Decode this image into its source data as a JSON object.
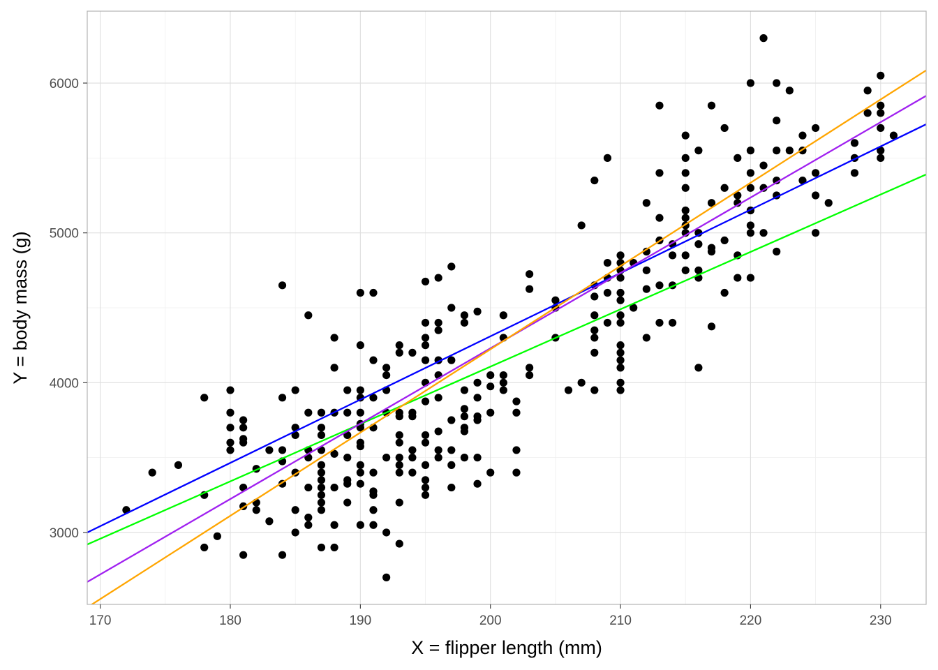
{
  "chart_data": {
    "type": "scatter",
    "title": "",
    "xlabel": "X = flipper length (mm)",
    "ylabel": "Y = body mass (g)",
    "xlim": [
      169,
      233.5
    ],
    "ylim": [
      2520,
      6480
    ],
    "grid": true,
    "x_ticks": [
      170,
      180,
      190,
      200,
      210,
      220,
      230
    ],
    "y_ticks": [
      3000,
      4000,
      5000,
      6000
    ],
    "points": [
      [
        172,
        3150
      ],
      [
        174,
        3400
      ],
      [
        176,
        3450
      ],
      [
        178,
        3900
      ],
      [
        178,
        3250
      ],
      [
        178,
        2900
      ],
      [
        179,
        2975
      ],
      [
        180,
        3950
      ],
      [
        180,
        3800
      ],
      [
        180,
        3700
      ],
      [
        180,
        3600
      ],
      [
        180,
        3550
      ],
      [
        181,
        3750
      ],
      [
        181,
        3700
      ],
      [
        181,
        3625
      ],
      [
        181,
        3600
      ],
      [
        181,
        3300
      ],
      [
        181,
        3175
      ],
      [
        181,
        2850
      ],
      [
        182,
        3425
      ],
      [
        182,
        3200
      ],
      [
        182,
        3150
      ],
      [
        183,
        3550
      ],
      [
        183,
        3075
      ],
      [
        184,
        4650
      ],
      [
        184,
        3900
      ],
      [
        184,
        3550
      ],
      [
        184,
        3475
      ],
      [
        184,
        3325
      ],
      [
        184,
        2850
      ],
      [
        185,
        3950
      ],
      [
        185,
        3700
      ],
      [
        185,
        3650
      ],
      [
        185,
        3400
      ],
      [
        185,
        3150
      ],
      [
        185,
        3000
      ],
      [
        186,
        4450
      ],
      [
        186,
        3800
      ],
      [
        186,
        3550
      ],
      [
        186,
        3500
      ],
      [
        186,
        3300
      ],
      [
        186,
        3100
      ],
      [
        186,
        3050
      ],
      [
        187,
        3800
      ],
      [
        187,
        3700
      ],
      [
        187,
        3650
      ],
      [
        187,
        3550
      ],
      [
        187,
        3450
      ],
      [
        187,
        3400
      ],
      [
        187,
        3350
      ],
      [
        187,
        3300
      ],
      [
        187,
        3250
      ],
      [
        187,
        3200
      ],
      [
        187,
        3150
      ],
      [
        187,
        2900
      ],
      [
        188,
        4300
      ],
      [
        188,
        4100
      ],
      [
        188,
        3800
      ],
      [
        188,
        3525
      ],
      [
        188,
        3300
      ],
      [
        188,
        3050
      ],
      [
        188,
        2900
      ],
      [
        189,
        3950
      ],
      [
        189,
        3800
      ],
      [
        189,
        3650
      ],
      [
        189,
        3500
      ],
      [
        189,
        3350
      ],
      [
        189,
        3325
      ],
      [
        189,
        3200
      ],
      [
        190,
        4600
      ],
      [
        190,
        4250
      ],
      [
        190,
        3950
      ],
      [
        190,
        3900
      ],
      [
        190,
        3800
      ],
      [
        190,
        3725
      ],
      [
        190,
        3700
      ],
      [
        190,
        3600
      ],
      [
        190,
        3575
      ],
      [
        190,
        3450
      ],
      [
        190,
        3400
      ],
      [
        190,
        3325
      ],
      [
        190,
        3050
      ],
      [
        191,
        4600
      ],
      [
        191,
        4150
      ],
      [
        191,
        3900
      ],
      [
        191,
        3700
      ],
      [
        191,
        3400
      ],
      [
        191,
        3275
      ],
      [
        191,
        3250
      ],
      [
        191,
        3150
      ],
      [
        191,
        3050
      ],
      [
        192,
        4100
      ],
      [
        192,
        4050
      ],
      [
        192,
        3950
      ],
      [
        192,
        3800
      ],
      [
        192,
        3500
      ],
      [
        192,
        3000
      ],
      [
        192,
        2700
      ],
      [
        193,
        4250
      ],
      [
        193,
        4200
      ],
      [
        193,
        3800
      ],
      [
        193,
        3775
      ],
      [
        193,
        3650
      ],
      [
        193,
        3600
      ],
      [
        193,
        3500
      ],
      [
        193,
        3450
      ],
      [
        193,
        3400
      ],
      [
        193,
        3200
      ],
      [
        193,
        2925
      ],
      [
        194,
        4200
      ],
      [
        194,
        3800
      ],
      [
        194,
        3775
      ],
      [
        194,
        3550
      ],
      [
        194,
        3500
      ],
      [
        194,
        3400
      ],
      [
        195,
        4675
      ],
      [
        195,
        4400
      ],
      [
        195,
        4300
      ],
      [
        195,
        4250
      ],
      [
        195,
        4150
      ],
      [
        195,
        4000
      ],
      [
        195,
        3875
      ],
      [
        195,
        3650
      ],
      [
        195,
        3600
      ],
      [
        195,
        3450
      ],
      [
        195,
        3350
      ],
      [
        195,
        3300
      ],
      [
        195,
        3250
      ],
      [
        196,
        4700
      ],
      [
        196,
        4400
      ],
      [
        196,
        4350
      ],
      [
        196,
        4150
      ],
      [
        196,
        4050
      ],
      [
        196,
        3900
      ],
      [
        196,
        3675
      ],
      [
        196,
        3550
      ],
      [
        196,
        3500
      ],
      [
        197,
        4775
      ],
      [
        197,
        4500
      ],
      [
        197,
        4150
      ],
      [
        197,
        3750
      ],
      [
        197,
        3550
      ],
      [
        197,
        3450
      ],
      [
        197,
        3300
      ],
      [
        198,
        4450
      ],
      [
        198,
        4400
      ],
      [
        198,
        3950
      ],
      [
        198,
        3825
      ],
      [
        198,
        3775
      ],
      [
        198,
        3700
      ],
      [
        198,
        3675
      ],
      [
        198,
        3500
      ],
      [
        199,
        4475
      ],
      [
        199,
        4000
      ],
      [
        199,
        3900
      ],
      [
        199,
        3775
      ],
      [
        199,
        3750
      ],
      [
        199,
        3500
      ],
      [
        199,
        3325
      ],
      [
        200,
        4050
      ],
      [
        200,
        3975
      ],
      [
        200,
        3800
      ],
      [
        200,
        3400
      ],
      [
        201,
        4450
      ],
      [
        201,
        4300
      ],
      [
        201,
        4050
      ],
      [
        201,
        4000
      ],
      [
        201,
        3950
      ],
      [
        202,
        3875
      ],
      [
        202,
        3800
      ],
      [
        202,
        3550
      ],
      [
        202,
        3400
      ],
      [
        203,
        4725
      ],
      [
        203,
        4625
      ],
      [
        203,
        4100
      ],
      [
        203,
        4050
      ],
      [
        205,
        4550
      ],
      [
        205,
        4500
      ],
      [
        205,
        4300
      ],
      [
        206,
        3950
      ],
      [
        207,
        5050
      ],
      [
        207,
        4000
      ],
      [
        208,
        5350
      ],
      [
        208,
        4650
      ],
      [
        208,
        4575
      ],
      [
        208,
        4450
      ],
      [
        208,
        4350
      ],
      [
        208,
        4300
      ],
      [
        208,
        4200
      ],
      [
        208,
        3950
      ],
      [
        209,
        5500
      ],
      [
        209,
        4800
      ],
      [
        209,
        4700
      ],
      [
        209,
        4600
      ],
      [
        209,
        4400
      ],
      [
        210,
        4850
      ],
      [
        210,
        4800
      ],
      [
        210,
        4750
      ],
      [
        210,
        4700
      ],
      [
        210,
        4600
      ],
      [
        210,
        4550
      ],
      [
        210,
        4450
      ],
      [
        210,
        4400
      ],
      [
        210,
        4250
      ],
      [
        210,
        4200
      ],
      [
        210,
        4150
      ],
      [
        210,
        4100
      ],
      [
        210,
        4000
      ],
      [
        210,
        3950
      ],
      [
        211,
        4800
      ],
      [
        211,
        4500
      ],
      [
        212,
        5200
      ],
      [
        212,
        4875
      ],
      [
        212,
        4750
      ],
      [
        212,
        4625
      ],
      [
        212,
        4300
      ],
      [
        213,
        5850
      ],
      [
        213,
        5400
      ],
      [
        213,
        5100
      ],
      [
        213,
        4950
      ],
      [
        213,
        4650
      ],
      [
        213,
        4400
      ],
      [
        214,
        4925
      ],
      [
        214,
        4850
      ],
      [
        214,
        4650
      ],
      [
        214,
        4400
      ],
      [
        215,
        5650
      ],
      [
        215,
        5500
      ],
      [
        215,
        5400
      ],
      [
        215,
        5300
      ],
      [
        215,
        5150
      ],
      [
        215,
        5100
      ],
      [
        215,
        5050
      ],
      [
        215,
        5000
      ],
      [
        215,
        4850
      ],
      [
        215,
        4750
      ],
      [
        216,
        5550
      ],
      [
        216,
        5000
      ],
      [
        216,
        4925
      ],
      [
        216,
        4750
      ],
      [
        216,
        4700
      ],
      [
        216,
        4100
      ],
      [
        217,
        5850
      ],
      [
        217,
        5200
      ],
      [
        217,
        4900
      ],
      [
        217,
        4875
      ],
      [
        217,
        4375
      ],
      [
        218,
        5700
      ],
      [
        218,
        5300
      ],
      [
        218,
        4950
      ],
      [
        218,
        4600
      ],
      [
        219,
        5500
      ],
      [
        219,
        5250
      ],
      [
        219,
        5200
      ],
      [
        219,
        4850
      ],
      [
        219,
        4700
      ],
      [
        220,
        6000
      ],
      [
        220,
        5550
      ],
      [
        220,
        5400
      ],
      [
        220,
        5300
      ],
      [
        220,
        5150
      ],
      [
        220,
        5050
      ],
      [
        220,
        5000
      ],
      [
        220,
        4700
      ],
      [
        221,
        6300
      ],
      [
        221,
        5450
      ],
      [
        221,
        5300
      ],
      [
        221,
        5000
      ],
      [
        222,
        6000
      ],
      [
        222,
        5750
      ],
      [
        222,
        5550
      ],
      [
        222,
        5350
      ],
      [
        222,
        5250
      ],
      [
        222,
        4875
      ],
      [
        223,
        5950
      ],
      [
        223,
        5550
      ],
      [
        224,
        5650
      ],
      [
        224,
        5550
      ],
      [
        224,
        5350
      ],
      [
        225,
        5700
      ],
      [
        225,
        5400
      ],
      [
        225,
        5250
      ],
      [
        225,
        5000
      ],
      [
        226,
        5200
      ],
      [
        228,
        5600
      ],
      [
        228,
        5500
      ],
      [
        228,
        5400
      ],
      [
        229,
        5950
      ],
      [
        229,
        5800
      ],
      [
        230,
        6050
      ],
      [
        230,
        5850
      ],
      [
        230,
        5800
      ],
      [
        230,
        5700
      ],
      [
        230,
        5550
      ],
      [
        230,
        5500
      ],
      [
        231,
        5650
      ]
    ],
    "lines": [
      {
        "color": "#0000ff",
        "x": [
          169,
          233.5
        ],
        "y": [
          3000,
          5725
        ]
      },
      {
        "color": "#00ff00",
        "x": [
          169,
          233.5
        ],
        "y": [
          2920,
          5390
        ]
      },
      {
        "color": "#a020f0",
        "x": [
          169,
          233.5
        ],
        "y": [
          2670,
          5915
        ]
      },
      {
        "color": "#ffa500",
        "x": [
          169,
          233.5
        ],
        "y": [
          2500,
          6085
        ]
      }
    ]
  },
  "colors": {
    "background": "#ffffff",
    "panel_border": "#b3b3b3",
    "grid_major": "#dedede",
    "grid_minor": "#efefef",
    "point": "#000000"
  }
}
